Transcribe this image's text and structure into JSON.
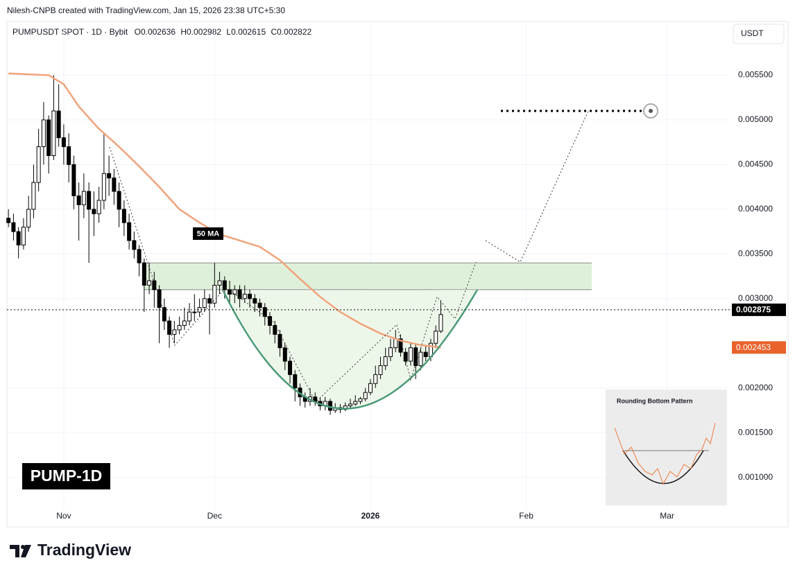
{
  "header": {
    "credit": "Nilesh-CNPB created with TradingView.com, Jan 15, 2026 23:38 UTC+5:30",
    "symbol": "PUMPUSDT SPOT · 1D · Bybit",
    "ohlc": [
      "O0.002636",
      "H0.002982",
      "L0.002615",
      "C0.002822"
    ],
    "currency": "USDT"
  },
  "chart_data": {
    "type": "candlestick",
    "up_color": "#ffffff",
    "down_color": "#000000",
    "wick_color": "#000000",
    "xlim": [
      -0.3,
      143.2
    ],
    "xticks": [
      {
        "value": 11,
        "label": "Nov"
      },
      {
        "value": 41,
        "label": "Dec"
      },
      {
        "value": 72,
        "label": "2026"
      },
      {
        "value": 103,
        "label": "Feb"
      },
      {
        "value": 131,
        "label": "Mar"
      }
    ],
    "ylim": [
      0.00064,
      0.00607
    ],
    "yticks": [
      {
        "value": 0.0055,
        "label": "0.005500"
      },
      {
        "value": 0.005,
        "label": "0.005000"
      },
      {
        "value": 0.0045,
        "label": "0.004500"
      },
      {
        "value": 0.004,
        "label": "0.004000"
      },
      {
        "value": 0.0035,
        "label": "0.003500"
      },
      {
        "value": 0.003,
        "label": "0.003000"
      },
      {
        "value": 0.002,
        "label": "0.002000"
      },
      {
        "value": 0.0015,
        "label": "0.001500"
      },
      {
        "value": 0.001,
        "label": "0.001000"
      }
    ],
    "grid": true,
    "candles": [
      [
        0.0039,
        0.004,
        0.0038,
        0.00385
      ],
      [
        0.00385,
        0.00395,
        0.00365,
        0.00375
      ],
      [
        0.00375,
        0.0038,
        0.00345,
        0.0036
      ],
      [
        0.0036,
        0.0039,
        0.00355,
        0.0038
      ],
      [
        0.0038,
        0.00415,
        0.00375,
        0.004
      ],
      [
        0.004,
        0.0045,
        0.0039,
        0.0043
      ],
      [
        0.0043,
        0.0049,
        0.0042,
        0.0047
      ],
      [
        0.0047,
        0.0052,
        0.0045,
        0.005
      ],
      [
        0.005,
        0.00505,
        0.0044,
        0.0046
      ],
      [
        0.0046,
        0.0055,
        0.00455,
        0.0051
      ],
      [
        0.0051,
        0.0054,
        0.0047,
        0.0048
      ],
      [
        0.0048,
        0.00495,
        0.0045,
        0.0047
      ],
      [
        0.0047,
        0.00485,
        0.0043,
        0.0045
      ],
      [
        0.0045,
        0.0046,
        0.004,
        0.00415
      ],
      [
        0.00415,
        0.0043,
        0.00365,
        0.00405
      ],
      [
        0.00405,
        0.0044,
        0.0039,
        0.0042
      ],
      [
        0.0042,
        0.0043,
        0.0034,
        0.004
      ],
      [
        0.004,
        0.0042,
        0.0037,
        0.00395
      ],
      [
        0.00395,
        0.00425,
        0.00385,
        0.0041
      ],
      [
        0.0041,
        0.00485,
        0.004,
        0.0044
      ],
      [
        0.0044,
        0.0046,
        0.00415,
        0.00435
      ],
      [
        0.00435,
        0.00445,
        0.00405,
        0.0042
      ],
      [
        0.0042,
        0.0043,
        0.0038,
        0.004
      ],
      [
        0.004,
        0.0041,
        0.0037,
        0.00385
      ],
      [
        0.00385,
        0.00395,
        0.00355,
        0.00365
      ],
      [
        0.00365,
        0.00375,
        0.00345,
        0.00355
      ],
      [
        0.00355,
        0.0036,
        0.00325,
        0.0034
      ],
      [
        0.0034,
        0.00345,
        0.00285,
        0.00315
      ],
      [
        0.00315,
        0.0034,
        0.00305,
        0.0032
      ],
      [
        0.0032,
        0.0033,
        0.0029,
        0.0031
      ],
      [
        0.0031,
        0.00315,
        0.0025,
        0.0029
      ],
      [
        0.0029,
        0.003,
        0.00265,
        0.00275
      ],
      [
        0.00275,
        0.0028,
        0.00245,
        0.0026
      ],
      [
        0.0026,
        0.00275,
        0.0025,
        0.00265
      ],
      [
        0.00265,
        0.0028,
        0.0026,
        0.0027
      ],
      [
        0.0027,
        0.0029,
        0.00265,
        0.00275
      ],
      [
        0.00275,
        0.00295,
        0.0027,
        0.00285
      ],
      [
        0.00285,
        0.00305,
        0.00275,
        0.00285
      ],
      [
        0.00285,
        0.003,
        0.0028,
        0.0029
      ],
      [
        0.0029,
        0.0031,
        0.00285,
        0.003
      ],
      [
        0.003,
        0.00305,
        0.0026,
        0.00295
      ],
      [
        0.00295,
        0.0034,
        0.0029,
        0.00315
      ],
      [
        0.00315,
        0.0033,
        0.00305,
        0.0032
      ],
      [
        0.0032,
        0.00325,
        0.003,
        0.0031
      ],
      [
        0.0031,
        0.0032,
        0.00295,
        0.00305
      ],
      [
        0.00305,
        0.00315,
        0.00295,
        0.0031
      ],
      [
        0.0031,
        0.00315,
        0.0029,
        0.003
      ],
      [
        0.003,
        0.00315,
        0.00295,
        0.00305
      ],
      [
        0.00305,
        0.0031,
        0.0029,
        0.003
      ],
      [
        0.003,
        0.00305,
        0.00285,
        0.00295
      ],
      [
        0.00295,
        0.003,
        0.0028,
        0.0029
      ],
      [
        0.0029,
        0.00295,
        0.0027,
        0.0028
      ],
      [
        0.0028,
        0.00285,
        0.0026,
        0.0027
      ],
      [
        0.0027,
        0.00275,
        0.0025,
        0.0026
      ],
      [
        0.0026,
        0.00265,
        0.00235,
        0.00245
      ],
      [
        0.00245,
        0.0025,
        0.0022,
        0.0023
      ],
      [
        0.0023,
        0.00235,
        0.00205,
        0.00215
      ],
      [
        0.00215,
        0.0022,
        0.00185,
        0.002
      ],
      [
        0.002,
        0.00205,
        0.0018,
        0.0019
      ],
      [
        0.0019,
        0.00195,
        0.00178,
        0.00185
      ],
      [
        0.00185,
        0.002,
        0.0018,
        0.0019
      ],
      [
        0.0019,
        0.00195,
        0.0018,
        0.00185
      ],
      [
        0.00185,
        0.0019,
        0.00175,
        0.0018
      ],
      [
        0.0018,
        0.0019,
        0.00175,
        0.00185
      ],
      [
        0.00185,
        0.00188,
        0.0017,
        0.00175
      ],
      [
        0.00175,
        0.00183,
        0.00172,
        0.00178
      ],
      [
        0.00178,
        0.00182,
        0.00172,
        0.00176
      ],
      [
        0.00176,
        0.00184,
        0.00174,
        0.0018
      ],
      [
        0.0018,
        0.00188,
        0.00177,
        0.00182
      ],
      [
        0.00182,
        0.00192,
        0.0018,
        0.00185
      ],
      [
        0.00185,
        0.0019,
        0.00182,
        0.00188
      ],
      [
        0.00188,
        0.002,
        0.00185,
        0.00195
      ],
      [
        0.00195,
        0.0021,
        0.00192,
        0.00205
      ],
      [
        0.00205,
        0.00225,
        0.002,
        0.00215
      ],
      [
        0.00215,
        0.00235,
        0.0021,
        0.00225
      ],
      [
        0.00225,
        0.00245,
        0.0022,
        0.00235
      ],
      [
        0.00235,
        0.00255,
        0.0023,
        0.00245
      ],
      [
        0.00245,
        0.00265,
        0.0024,
        0.00255
      ],
      [
        0.00255,
        0.0026,
        0.00235,
        0.0024
      ],
      [
        0.0024,
        0.00245,
        0.00225,
        0.0023
      ],
      [
        0.0023,
        0.0025,
        0.00225,
        0.00245
      ],
      [
        0.00245,
        0.0025,
        0.0021,
        0.00225
      ],
      [
        0.00225,
        0.00245,
        0.0022,
        0.0024
      ],
      [
        0.0024,
        0.00248,
        0.0023,
        0.00235
      ],
      [
        0.00235,
        0.00255,
        0.0023,
        0.0025
      ],
      [
        0.0025,
        0.0027,
        0.00245,
        0.002636
      ],
      [
        0.002636,
        0.002982,
        0.002615,
        0.002822
      ]
    ],
    "ma": {
      "name": "50 MA",
      "color": "#f2a27a",
      "x": [
        0,
        4,
        8,
        11,
        14,
        18,
        22,
        26,
        30,
        34,
        38,
        42,
        46,
        50,
        54,
        58,
        62,
        66,
        70,
        74,
        78,
        82,
        86
      ],
      "values": [
        0.00552,
        0.00551,
        0.0055,
        0.0054,
        0.00515,
        0.0049,
        0.0047,
        0.00448,
        0.00425,
        0.004,
        0.00385,
        0.00372,
        0.00365,
        0.00358,
        0.00343,
        0.00322,
        0.00302,
        0.00285,
        0.00272,
        0.00261,
        0.00253,
        0.00248,
        0.002453
      ],
      "tag_color": "#e8622a"
    },
    "last_price": 0.002875,
    "zone": [
      0.0031,
      0.0034
    ],
    "target": 0.0051,
    "label": "PUMP-1D",
    "inset_title": "Rounding Bottom Pattern"
  },
  "footer": {
    "brand": "TradingView"
  }
}
